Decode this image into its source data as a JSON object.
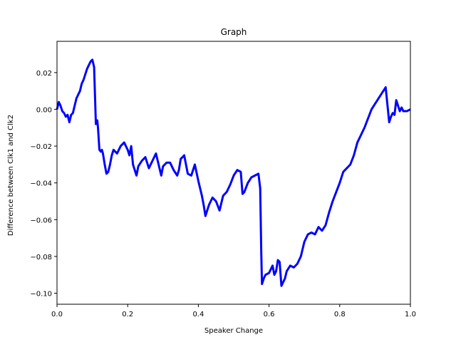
{
  "chart_data": {
    "type": "line",
    "title": "Graph",
    "xlabel": "Speaker Change",
    "ylabel": "Difference between Clk1 and Clk2",
    "xlim": [
      0.0,
      1.0
    ],
    "ylim": [
      -0.106,
      0.037
    ],
    "x_ticks": [
      0.0,
      0.2,
      0.4,
      0.6,
      0.8,
      1.0
    ],
    "x_tick_labels": [
      "0.0",
      "0.2",
      "0.4",
      "0.6",
      "0.8",
      "1.0"
    ],
    "y_ticks": [
      0.02,
      0.0,
      -0.02,
      -0.04,
      -0.06,
      -0.08,
      -0.1
    ],
    "y_tick_labels": [
      "0.02",
      "0.00",
      "−0.02",
      "−0.04",
      "−0.06",
      "−0.08",
      "−0.10"
    ],
    "grid": false,
    "series": [
      {
        "color": "#0000ff",
        "x": [
          0.0,
          0.005,
          0.01,
          0.015,
          0.02,
          0.025,
          0.03,
          0.035,
          0.04,
          0.045,
          0.05,
          0.055,
          0.06,
          0.065,
          0.07,
          0.075,
          0.08,
          0.085,
          0.09,
          0.095,
          0.1,
          0.105,
          0.11,
          0.114,
          0.116,
          0.12,
          0.124,
          0.127,
          0.13,
          0.135,
          0.14,
          0.145,
          0.15,
          0.155,
          0.16,
          0.17,
          0.18,
          0.19,
          0.2,
          0.205,
          0.21,
          0.215,
          0.22,
          0.225,
          0.23,
          0.24,
          0.25,
          0.26,
          0.27,
          0.28,
          0.29,
          0.295,
          0.3,
          0.31,
          0.32,
          0.33,
          0.34,
          0.345,
          0.35,
          0.36,
          0.37,
          0.38,
          0.39,
          0.4,
          0.405,
          0.41,
          0.415,
          0.42,
          0.43,
          0.44,
          0.45,
          0.46,
          0.47,
          0.48,
          0.49,
          0.5,
          0.51,
          0.52,
          0.525,
          0.53,
          0.54,
          0.55,
          0.56,
          0.57,
          0.575,
          0.578,
          0.58,
          0.585,
          0.59,
          0.6,
          0.61,
          0.615,
          0.62,
          0.625,
          0.63,
          0.635,
          0.64,
          0.645,
          0.65,
          0.66,
          0.67,
          0.68,
          0.69,
          0.7,
          0.71,
          0.72,
          0.73,
          0.74,
          0.75,
          0.76,
          0.77,
          0.78,
          0.79,
          0.8,
          0.81,
          0.82,
          0.83,
          0.84,
          0.85,
          0.86,
          0.87,
          0.88,
          0.89,
          0.9,
          0.91,
          0.92,
          0.93,
          0.94,
          0.945,
          0.95,
          0.955,
          0.96,
          0.965,
          0.97,
          0.975,
          0.98,
          0.99,
          1.0
        ],
        "y": [
          0.0,
          0.004,
          0.002,
          -0.001,
          -0.002,
          -0.004,
          -0.003,
          -0.007,
          -0.003,
          -0.002,
          0.002,
          0.006,
          0.008,
          0.01,
          0.014,
          0.016,
          0.019,
          0.022,
          0.024,
          0.026,
          0.027,
          0.023,
          -0.008,
          -0.006,
          -0.01,
          -0.022,
          -0.023,
          -0.022,
          -0.024,
          -0.03,
          -0.035,
          -0.034,
          -0.03,
          -0.025,
          -0.022,
          -0.024,
          -0.02,
          -0.018,
          -0.022,
          -0.025,
          -0.02,
          -0.03,
          -0.033,
          -0.036,
          -0.031,
          -0.028,
          -0.026,
          -0.032,
          -0.028,
          -0.024,
          -0.032,
          -0.036,
          -0.031,
          -0.029,
          -0.029,
          -0.033,
          -0.036,
          -0.033,
          -0.027,
          -0.025,
          -0.035,
          -0.036,
          -0.03,
          -0.039,
          -0.043,
          -0.047,
          -0.052,
          -0.058,
          -0.052,
          -0.048,
          -0.05,
          -0.055,
          -0.047,
          -0.045,
          -0.041,
          -0.036,
          -0.033,
          -0.034,
          -0.046,
          -0.045,
          -0.04,
          -0.037,
          -0.036,
          -0.035,
          -0.043,
          -0.078,
          -0.095,
          -0.092,
          -0.09,
          -0.089,
          -0.085,
          -0.09,
          -0.088,
          -0.082,
          -0.083,
          -0.096,
          -0.094,
          -0.092,
          -0.088,
          -0.085,
          -0.086,
          -0.084,
          -0.08,
          -0.072,
          -0.068,
          -0.067,
          -0.068,
          -0.064,
          -0.066,
          -0.063,
          -0.056,
          -0.05,
          -0.045,
          -0.04,
          -0.034,
          -0.032,
          -0.03,
          -0.025,
          -0.018,
          -0.014,
          -0.01,
          -0.005,
          0.0,
          0.003,
          0.006,
          0.009,
          0.012,
          -0.007,
          -0.004,
          -0.002,
          -0.003,
          0.005,
          0.002,
          -0.001,
          0.001,
          -0.001,
          -0.001,
          0.0
        ]
      }
    ]
  }
}
